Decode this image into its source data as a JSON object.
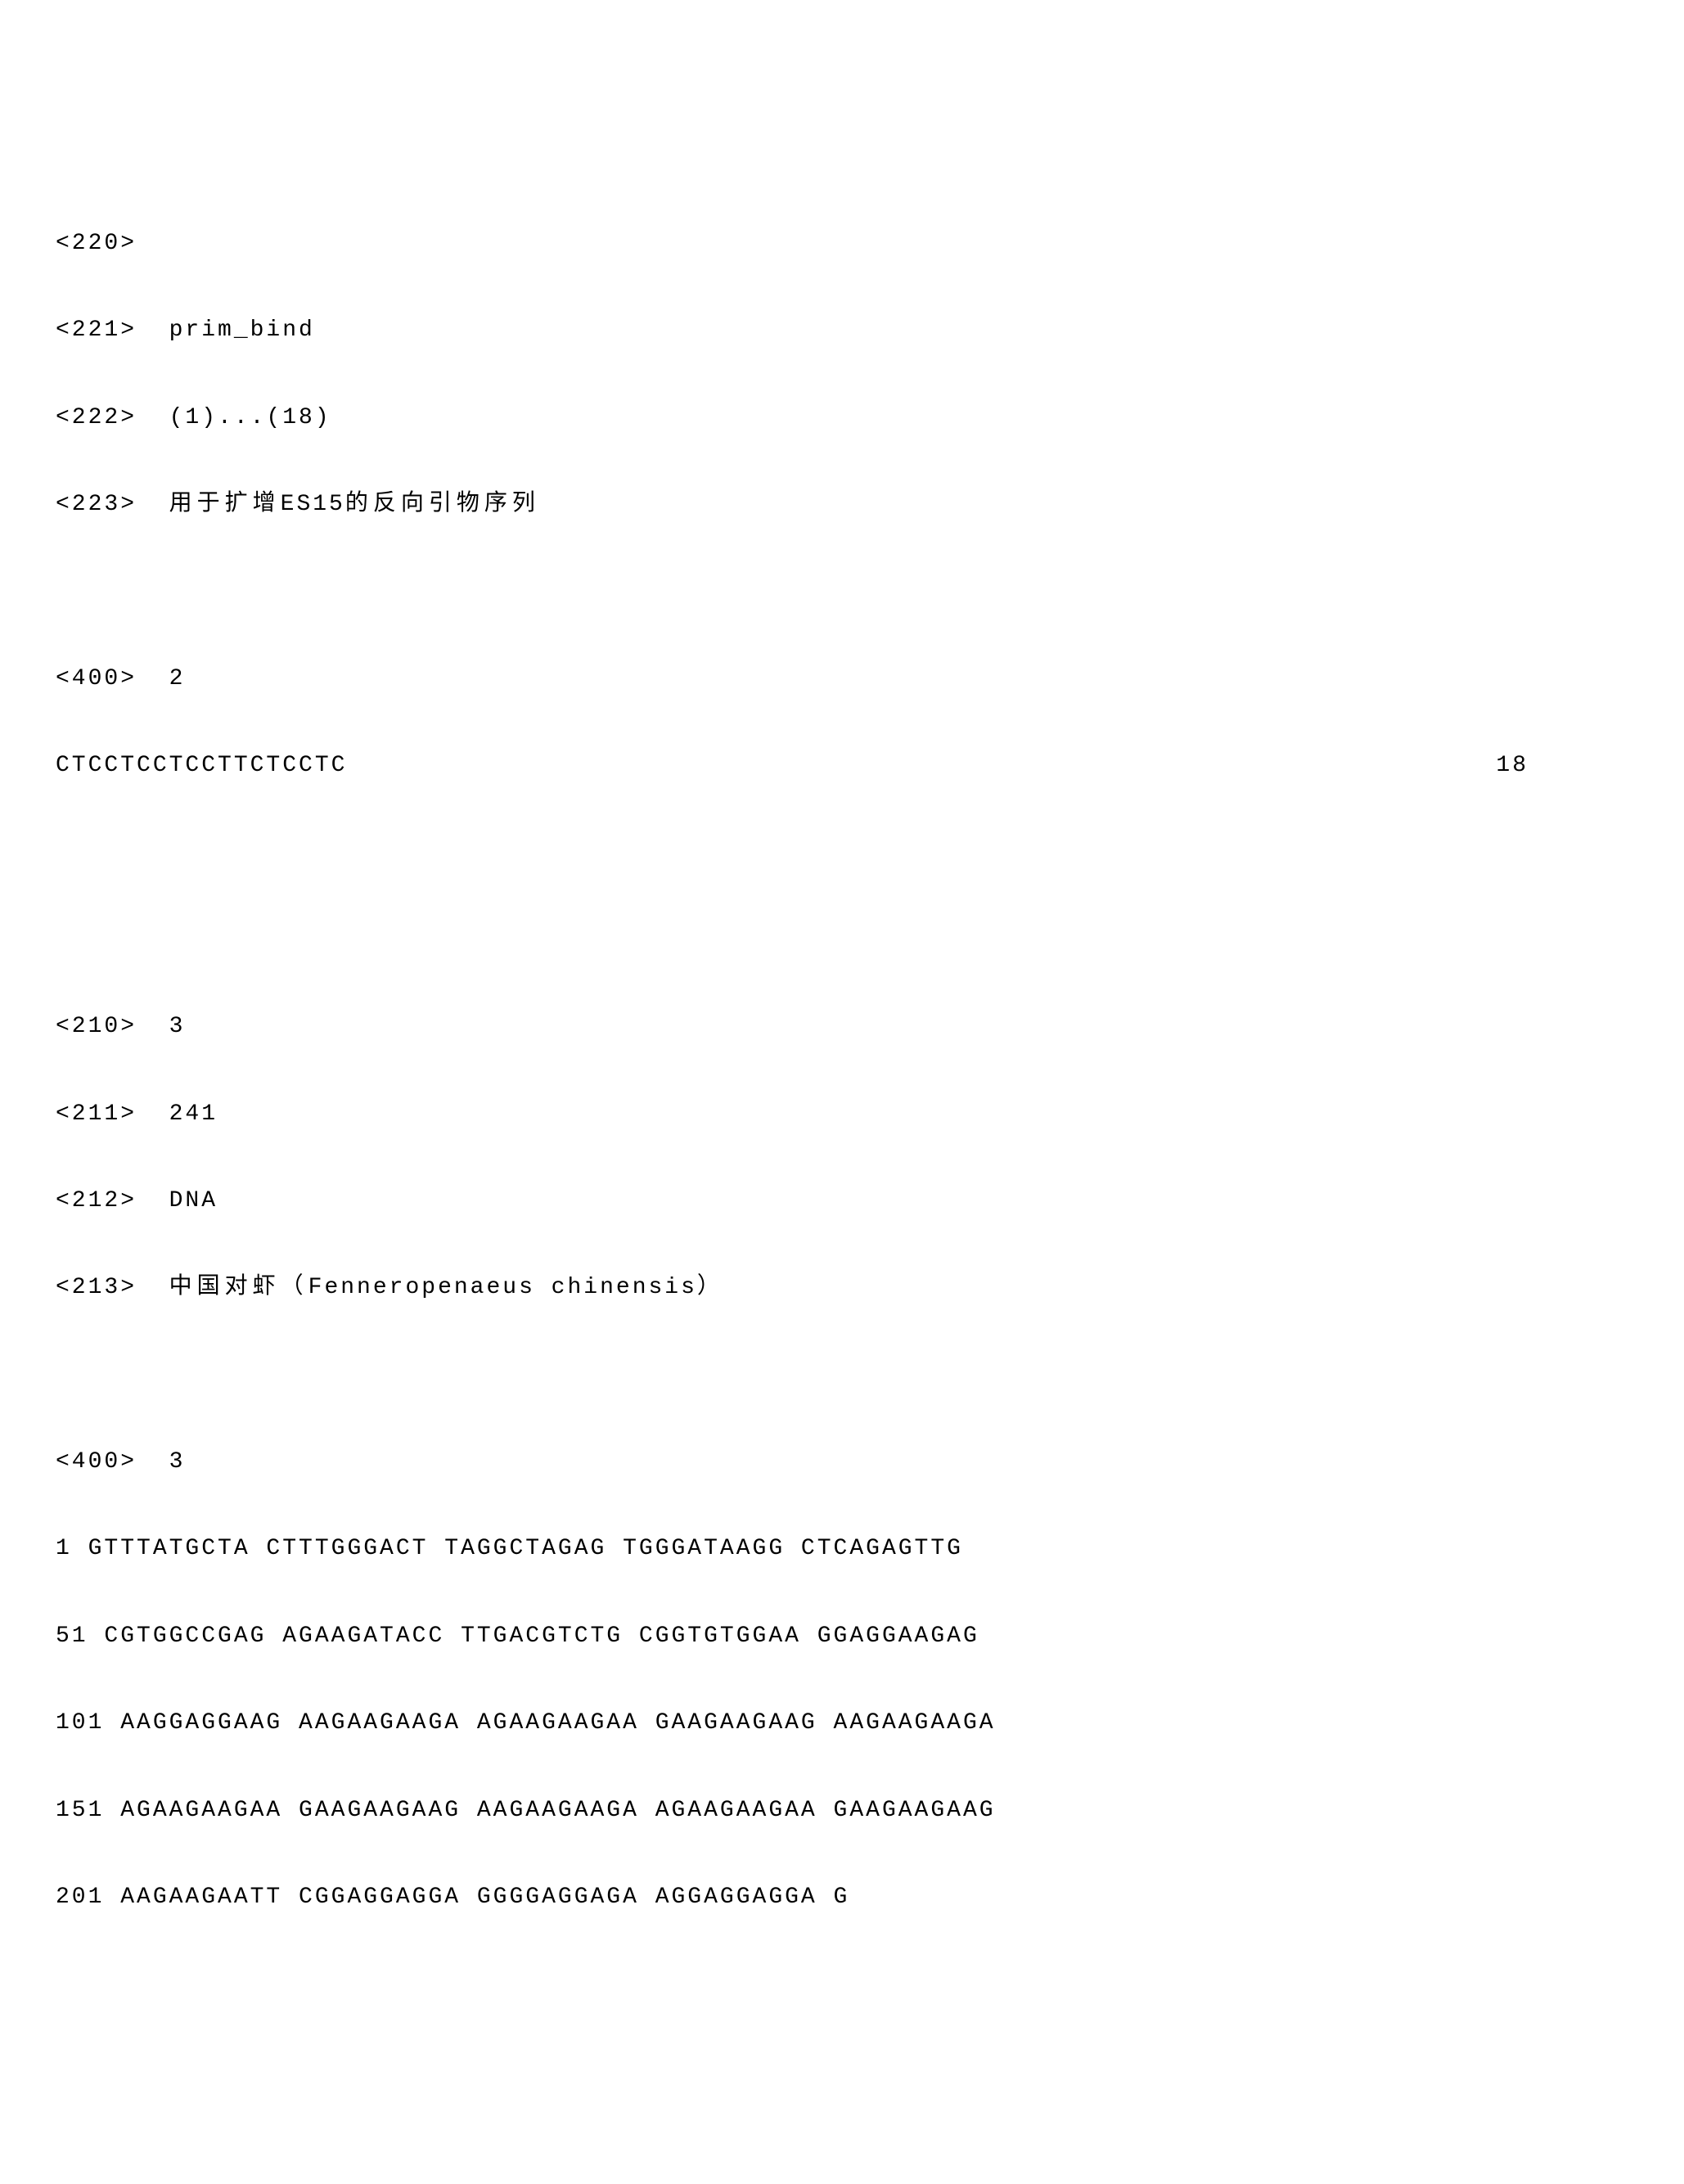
{
  "lines": {
    "a1": "<220>",
    "a2": "<221>  prim_bind",
    "a3": "<222>  (1)...(18)",
    "a4_prefix": "<223>  ",
    "a4_cjk": "用于扩增",
    "a4_mid": "ES15",
    "a4_cjk2": "的反向引物序列",
    "b1": "<400>  2",
    "b2_seq": "CTCCTCCTCCTTCTCCTC",
    "b2_num": "18",
    "c1": "<210>  3",
    "c2": "<211>  241",
    "c3": "<212>  DNA",
    "c4_prefix": "<213>  ",
    "c4_cjk": "中国对虾（",
    "c4_lat": "Fenneropenaeus chinensis",
    "c4_cjk2": "）",
    "d1": "<400>  3",
    "s1": "1 GTTTATGCTA CTTTGGGACT TAGGCTAGAG TGGGATAAGG CTCAGAGTTG",
    "s2": "51 CGTGGCCGAG AGAAGATACC TTGACGTCTG CGGTGTGGAA GGAGGAAGAG",
    "s3": "101 AAGGAGGAAG AAGAAGAAGA AGAAGAAGAA GAAGAAGAAG AAGAAGAAGA",
    "s4": "151 AGAAGAAGAA GAAGAAGAAG AAGAAGAAGA AGAAGAAGAA GAAGAAGAAG",
    "s5": "201 AAGAAGAATT CGGAGGAGGA GGGGAGGAGA AGGAGGAGGA G"
  }
}
